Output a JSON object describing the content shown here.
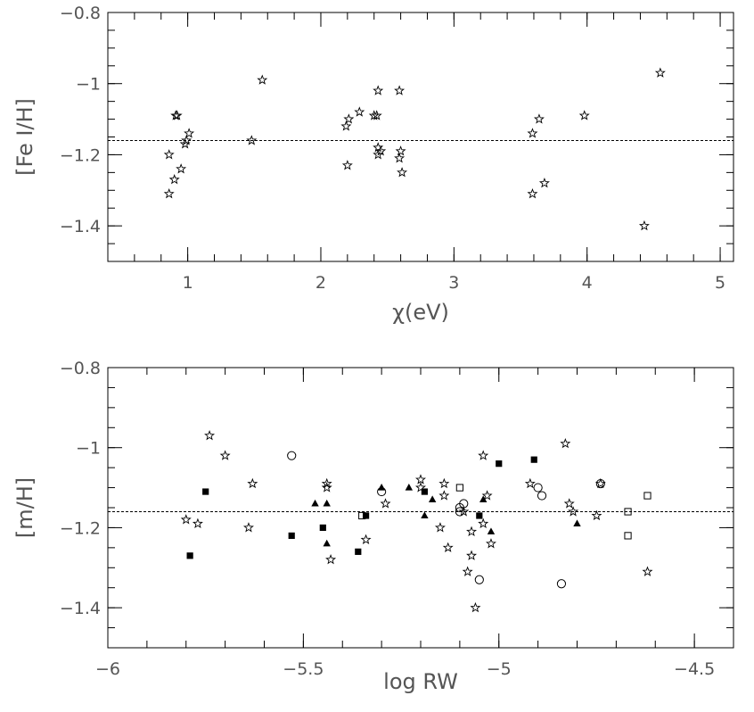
{
  "chart_data": [
    {
      "type": "scatter",
      "title": "",
      "xlabel": "χ(eV)",
      "ylabel": "[Fe I/H]",
      "xlim": [
        0.4,
        5.1
      ],
      "ylim": [
        -1.5,
        -0.8
      ],
      "x_ticks": [
        1,
        2,
        3,
        4,
        5
      ],
      "x_tick_labels": [
        "1",
        "2",
        "3",
        "4",
        "5"
      ],
      "y_ticks": [
        -0.8,
        -1.0,
        -1.2,
        -1.4
      ],
      "y_tick_labels": [
        "−0.8",
        "−1",
        "−1.2",
        "−1.4"
      ],
      "reference_line": -1.16,
      "grid": false,
      "series": [
        {
          "marker": "star",
          "points": [
            [
              0.86,
              -1.2
            ],
            [
              0.86,
              -1.31
            ],
            [
              0.9,
              -1.27
            ],
            [
              0.91,
              -1.09
            ],
            [
              0.92,
              -1.09
            ],
            [
              0.95,
              -1.24
            ],
            [
              0.98,
              -1.17
            ],
            [
              0.99,
              -1.16
            ],
            [
              1.01,
              -1.14
            ],
            [
              1.48,
              -1.16
            ],
            [
              1.56,
              -0.99
            ],
            [
              2.19,
              -1.12
            ],
            [
              2.2,
              -1.23
            ],
            [
              2.21,
              -1.1
            ],
            [
              2.29,
              -1.08
            ],
            [
              2.4,
              -1.09
            ],
            [
              2.42,
              -1.09
            ],
            [
              2.43,
              -1.02
            ],
            [
              2.43,
              -1.18
            ],
            [
              2.43,
              -1.2
            ],
            [
              2.45,
              -1.19
            ],
            [
              2.59,
              -1.02
            ],
            [
              2.59,
              -1.21
            ],
            [
              2.6,
              -1.19
            ],
            [
              2.61,
              -1.25
            ],
            [
              3.59,
              -1.14
            ],
            [
              3.59,
              -1.31
            ],
            [
              3.64,
              -1.1
            ],
            [
              3.68,
              -1.28
            ],
            [
              3.98,
              -1.09
            ],
            [
              4.43,
              -1.4
            ],
            [
              4.55,
              -0.97
            ]
          ]
        }
      ]
    },
    {
      "type": "scatter",
      "title": "",
      "xlabel": "log RW",
      "ylabel": "[m/H]",
      "xlim": [
        -6.0,
        -4.4
      ],
      "ylim": [
        -1.5,
        -0.8
      ],
      "x_ticks": [
        -6.0,
        -5.5,
        -5.0,
        -4.5
      ],
      "x_tick_labels": [
        "−6",
        "−5.5",
        "−5",
        "−4.5"
      ],
      "y_ticks": [
        -0.8,
        -1.0,
        -1.2,
        -1.4
      ],
      "y_tick_labels": [
        "−0.8",
        "−1",
        "−1.2",
        "−1.4"
      ],
      "reference_line": -1.16,
      "grid": false,
      "series": [
        {
          "marker": "star",
          "points": [
            [
              -5.8,
              -1.18
            ],
            [
              -5.77,
              -1.19
            ],
            [
              -5.74,
              -0.97
            ],
            [
              -5.7,
              -1.02
            ],
            [
              -5.64,
              -1.2
            ],
            [
              -5.63,
              -1.09
            ],
            [
              -5.44,
              -1.09
            ],
            [
              -5.44,
              -1.1
            ],
            [
              -5.43,
              -1.28
            ],
            [
              -5.34,
              -1.23
            ],
            [
              -5.29,
              -1.14
            ],
            [
              -5.2,
              -1.08
            ],
            [
              -5.2,
              -1.1
            ],
            [
              -5.15,
              -1.2
            ],
            [
              -5.14,
              -1.09
            ],
            [
              -5.14,
              -1.12
            ],
            [
              -5.13,
              -1.25
            ],
            [
              -5.09,
              -1.16
            ],
            [
              -5.08,
              -1.31
            ],
            [
              -5.07,
              -1.21
            ],
            [
              -5.07,
              -1.27
            ],
            [
              -5.06,
              -1.4
            ],
            [
              -5.04,
              -1.02
            ],
            [
              -5.04,
              -1.19
            ],
            [
              -5.03,
              -1.12
            ],
            [
              -5.02,
              -1.24
            ],
            [
              -4.92,
              -1.09
            ],
            [
              -4.83,
              -0.99
            ],
            [
              -4.82,
              -1.14
            ],
            [
              -4.81,
              -1.16
            ],
            [
              -4.75,
              -1.17
            ],
            [
              -4.74,
              -1.09
            ],
            [
              -4.62,
              -1.31
            ]
          ]
        },
        {
          "marker": "open-circle",
          "points": [
            [
              -5.53,
              -1.02
            ],
            [
              -5.3,
              -1.11
            ],
            [
              -5.1,
              -1.16
            ],
            [
              -5.1,
              -1.15
            ],
            [
              -5.09,
              -1.14
            ],
            [
              -5.05,
              -1.33
            ],
            [
              -4.9,
              -1.1
            ],
            [
              -4.89,
              -1.12
            ],
            [
              -4.84,
              -1.34
            ],
            [
              -4.74,
              -1.09
            ]
          ]
        },
        {
          "marker": "open-square",
          "points": [
            [
              -5.35,
              -1.17
            ],
            [
              -5.1,
              -1.1
            ],
            [
              -4.67,
              -1.16
            ],
            [
              -4.67,
              -1.22
            ],
            [
              -4.62,
              -1.12
            ]
          ]
        },
        {
          "marker": "filled-square",
          "points": [
            [
              -5.79,
              -1.27
            ],
            [
              -5.75,
              -1.11
            ],
            [
              -5.53,
              -1.22
            ],
            [
              -5.45,
              -1.2
            ],
            [
              -5.36,
              -1.26
            ],
            [
              -5.34,
              -1.17
            ],
            [
              -5.19,
              -1.11
            ],
            [
              -5.05,
              -1.17
            ],
            [
              -5.0,
              -1.04
            ],
            [
              -4.91,
              -1.03
            ]
          ]
        },
        {
          "marker": "filled-triangle",
          "points": [
            [
              -5.47,
              -1.14
            ],
            [
              -5.44,
              -1.14
            ],
            [
              -5.44,
              -1.24
            ],
            [
              -5.3,
              -1.1
            ],
            [
              -5.23,
              -1.1
            ],
            [
              -5.19,
              -1.17
            ],
            [
              -5.17,
              -1.13
            ],
            [
              -5.04,
              -1.13
            ],
            [
              -5.02,
              -1.21
            ],
            [
              -4.8,
              -1.19
            ]
          ]
        }
      ]
    }
  ]
}
